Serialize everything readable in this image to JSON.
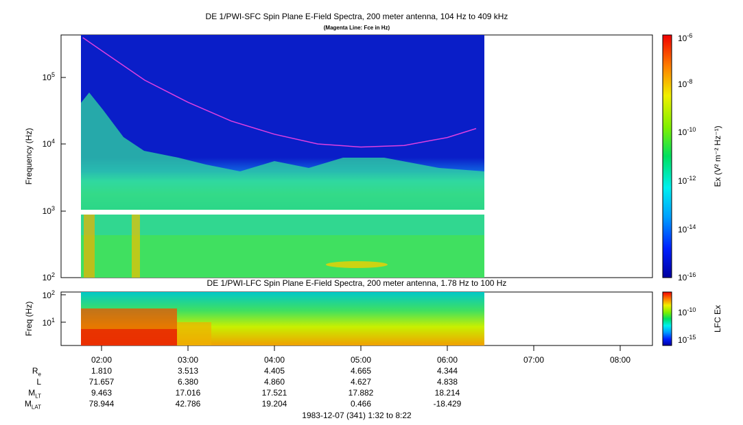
{
  "panel_top": {
    "title": "DE 1/PWI-SFC  Spin Plane E-Field Spectra, 200 meter antenna, 104 Hz to 409 kHz",
    "subtitle": "(Magenta Line: Fce in Hz)",
    "ylabel": "Frequency (Hz)",
    "y_ticks": [
      {
        "base": "10",
        "exp": "2"
      },
      {
        "base": "10",
        "exp": "3"
      },
      {
        "base": "10",
        "exp": "4"
      },
      {
        "base": "10",
        "exp": "5"
      }
    ],
    "colorbar_label": "Ex (V² m⁻² Hz⁻¹)",
    "colorbar_ticks": [
      {
        "base": "10",
        "exp": "-6"
      },
      {
        "base": "10",
        "exp": "-8"
      },
      {
        "base": "10",
        "exp": "-10"
      },
      {
        "base": "10",
        "exp": "-12"
      },
      {
        "base": "10",
        "exp": "-14"
      },
      {
        "base": "10",
        "exp": "-16"
      }
    ]
  },
  "panel_bottom": {
    "title": "DE 1/PWI-LFC  Spin Plane E-Field Spectra, 200 meter antenna, 1.78 Hz to 100 Hz",
    "ylabel": "Freq (Hz)",
    "y_ticks": [
      {
        "base": "10",
        "exp": "1"
      },
      {
        "base": "10",
        "exp": "2"
      }
    ],
    "colorbar_label": "LFC Ex",
    "colorbar_ticks": [
      {
        "base": "10",
        "exp": "-10"
      },
      {
        "base": "10",
        "exp": "-15"
      }
    ]
  },
  "x_ticks": [
    "02:00",
    "03:00",
    "04:00",
    "05:00",
    "06:00",
    "07:00",
    "08:00"
  ],
  "ephemeris": {
    "labels": [
      {
        "main": "R",
        "sub": "e"
      },
      {
        "main": "L",
        "sub": ""
      },
      {
        "main": "M",
        "sub": "LT"
      },
      {
        "main": "M",
        "sub": "LAT"
      }
    ],
    "rows": [
      [
        "1.810",
        "3.513",
        "4.405",
        "4.665",
        "4.344"
      ],
      [
        "71.657",
        "6.380",
        "4.860",
        "4.627",
        "4.838"
      ],
      [
        "9.463",
        "17.016",
        "17.521",
        "17.882",
        "18.214"
      ],
      [
        "78.944",
        "42.786",
        "19.204",
        "0.466",
        "-18.429"
      ]
    ]
  },
  "footer": "1983-12-07 (341) 1:32 to 8:22",
  "colors": {
    "fce_line": "#e040e0",
    "background_dark_blue": "#0a1ec8"
  },
  "chart_data": [
    {
      "type": "heatmap",
      "title": "DE 1/PWI-SFC  Spin Plane E-Field Spectra, 200 meter antenna, 104 Hz to 409 kHz",
      "ylabel": "Frequency (Hz)",
      "yscale": "log",
      "ylim": [
        100,
        409000
      ],
      "xlim": [
        "01:32",
        "08:22"
      ],
      "data_end": "06:23",
      "colorbar": {
        "label": "Ex (V² m⁻² Hz⁻¹)",
        "scale": "log",
        "range": [
          1e-16,
          1e-06
        ]
      },
      "series": [
        {
          "name": "Fce in Hz",
          "x": [
            "01:47",
            "02:00",
            "02:30",
            "03:00",
            "03:30",
            "04:00",
            "04:30",
            "05:00",
            "05:30",
            "06:00",
            "06:20"
          ],
          "y": [
            390000,
            250000,
            90000,
            42000,
            22000,
            14000,
            10000,
            9000,
            9500,
            12500,
            17000
          ]
        }
      ]
    },
    {
      "type": "heatmap",
      "title": "DE 1/PWI-LFC  Spin Plane E-Field Spectra, 200 meter antenna, 1.78 Hz to 100 Hz",
      "ylabel": "Freq (Hz)",
      "yscale": "log",
      "ylim": [
        1.78,
        100
      ],
      "xlim": [
        "01:32",
        "08:22"
      ],
      "data_end": "06:23",
      "colorbar": {
        "label": "LFC Ex",
        "scale": "log",
        "range": [
          1e-16,
          1e-07
        ]
      }
    }
  ]
}
